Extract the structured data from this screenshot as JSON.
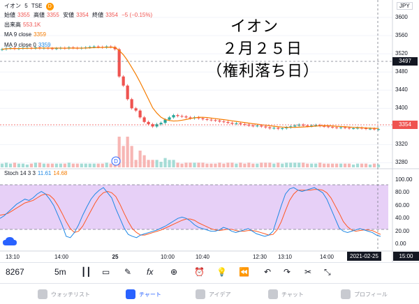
{
  "symbol": {
    "name": "イオン",
    "interval": "5",
    "exchange": "TSE",
    "badge": "D"
  },
  "ohlc": {
    "open_label": "始値",
    "open": "3355",
    "high_label": "高値",
    "high": "3355",
    "low_label": "安値",
    "low": "3354",
    "close_label": "終値",
    "close": "3354",
    "change": "−5 (−0.15%)"
  },
  "volume": {
    "label": "出来高",
    "value": "553.1K"
  },
  "ma1": {
    "label": "MA 9 close",
    "value": "3359"
  },
  "ma2": {
    "label": "MA 9 close 0",
    "value": "3359"
  },
  "currency": "JPY",
  "overlay": {
    "line1": "イオン",
    "line2": "２月２５日",
    "line3": "（権利落ち日）"
  },
  "price_axis": [
    "3600",
    "3560",
    "3520",
    "3480",
    "3440",
    "3400",
    "3360",
    "3320",
    "3280"
  ],
  "crosshair_price": "3497",
  "last_price": "3354",
  "stoch": {
    "label": "Stoch 14 3 3",
    "k": "11.61",
    "d": "14.68"
  },
  "stoch_axis": [
    "100.00",
    "80.00",
    "60.00",
    "40.00",
    "20.00",
    "0.00"
  ],
  "time_axis": [
    "13:10",
    "14:00",
    "25",
    "10:00",
    "10:40",
    "12:30",
    "13:10",
    "14:00"
  ],
  "crosshair_date": "2021-02-25",
  "crosshair_time": "15:00",
  "toolbar": {
    "price": "8267",
    "interval": "5m"
  },
  "tabs": [
    {
      "label": "ウォッチリスト",
      "active": false
    },
    {
      "label": "チャート",
      "active": true
    },
    {
      "label": "アイデア",
      "active": false
    },
    {
      "label": "チャット",
      "active": false
    },
    {
      "label": "プロフィール",
      "active": false
    }
  ],
  "colors": {
    "up": "#26a69a",
    "down": "#ef5350",
    "ma": "#f57c00",
    "stoch_k": "#1e88e5",
    "stoch_d": "#ff5722",
    "band": "#e1c4f5"
  },
  "chart_data": [
    {
      "type": "candlestick",
      "ylim": [
        3270,
        3620
      ],
      "price_series": [
        3530,
        3532,
        3533,
        3531,
        3532,
        3533,
        3533,
        3532,
        3534,
        3532,
        3533,
        3532,
        3531,
        3532,
        3533,
        3532,
        3534,
        3533,
        3532,
        3533,
        3534,
        3535,
        3536,
        3535,
        3534,
        3536,
        3535,
        3530,
        3470,
        3450,
        3420,
        3400,
        3395,
        3380,
        3370,
        3365,
        3360,
        3365,
        3368,
        3375,
        3380,
        3385,
        3383,
        3382,
        3380,
        3378,
        3380,
        3378,
        3376,
        3375,
        3374,
        3373,
        3371,
        3370,
        3368,
        3366,
        3367,
        3365,
        3364,
        3362,
        3361,
        3362,
        3360,
        3358,
        3356,
        3357,
        3355,
        3356,
        3358,
        3360,
        3362,
        3364,
        3362,
        3361,
        3362,
        3363,
        3361,
        3360,
        3359,
        3358,
        3357,
        3358,
        3357,
        3356,
        3356,
        3357,
        3356,
        3355,
        3355,
        3354,
        3354
      ]
    },
    {
      "type": "line",
      "stoch_k": [
        40,
        44,
        50,
        56,
        62,
        66,
        70,
        68,
        72,
        78,
        82,
        78,
        70,
        60,
        45,
        30,
        12,
        10,
        18,
        30,
        45,
        58,
        70,
        78,
        84,
        88,
        80,
        72,
        55,
        40,
        25,
        15,
        12,
        10,
        14,
        16,
        18,
        20,
        22,
        25,
        28,
        32,
        36,
        40,
        42,
        40,
        36,
        30,
        26,
        24,
        22,
        20,
        20,
        22,
        26,
        24,
        20,
        18,
        20,
        22,
        24,
        20,
        16,
        14,
        12,
        14,
        20,
        40,
        60,
        78,
        86,
        88,
        84,
        82,
        84,
        86,
        88,
        84,
        80,
        70,
        55,
        40,
        25,
        20,
        18,
        20,
        22,
        24,
        22,
        20,
        18,
        14,
        12
      ],
      "stoch_d": [
        45,
        46,
        48,
        52,
        56,
        60,
        64,
        66,
        68,
        72,
        76,
        78,
        76,
        70,
        60,
        48,
        35,
        24,
        18,
        20,
        28,
        40,
        52,
        64,
        74,
        80,
        82,
        80,
        74,
        62,
        48,
        35,
        24,
        18,
        14,
        14,
        16,
        18,
        20,
        22,
        25,
        28,
        31,
        34,
        37,
        39,
        39,
        37,
        33,
        30,
        27,
        24,
        22,
        21,
        22,
        23,
        23,
        21,
        20,
        20,
        21,
        21,
        20,
        18,
        16,
        14,
        15,
        22,
        35,
        52,
        68,
        78,
        84,
        84,
        84,
        84,
        85,
        85,
        84,
        80,
        72,
        60,
        48,
        35,
        27,
        22,
        20,
        21,
        22,
        22,
        21,
        18,
        15
      ]
    }
  ]
}
